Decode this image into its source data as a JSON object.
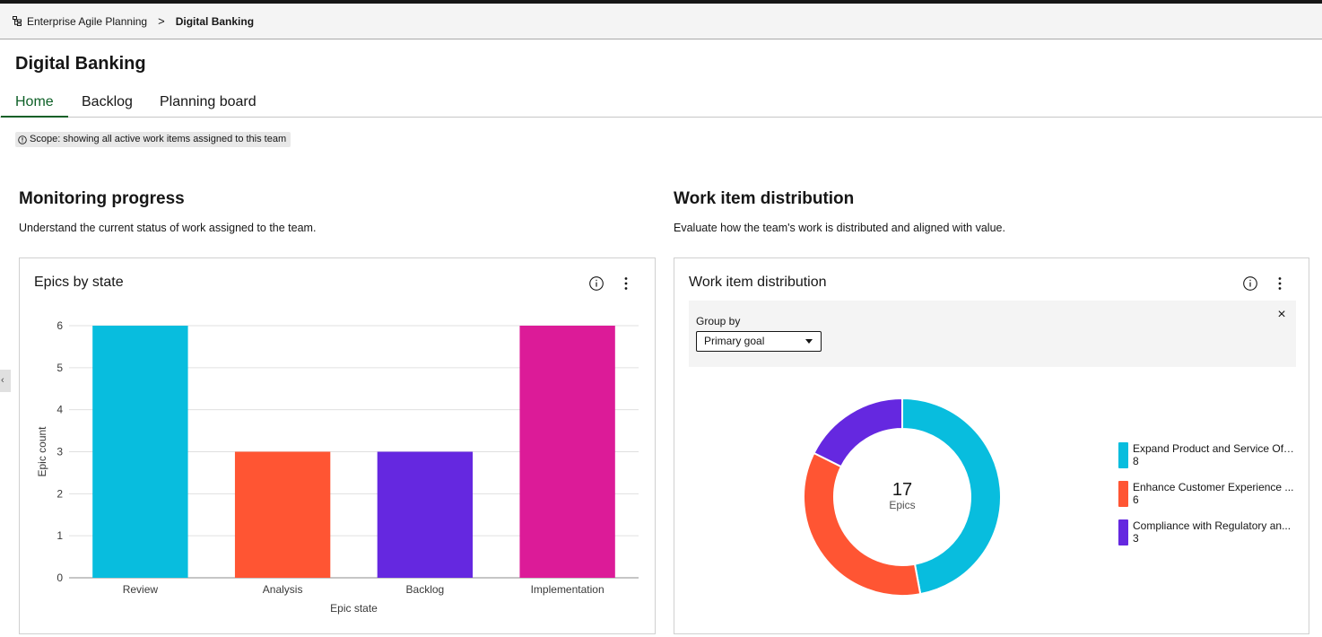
{
  "breadcrumb": {
    "parent": "Enterprise Agile Planning",
    "separator": ">",
    "current": "Digital Banking"
  },
  "page": {
    "title": "Digital Banking"
  },
  "tabs": [
    {
      "label": "Home",
      "active": true
    },
    {
      "label": "Backlog",
      "active": false
    },
    {
      "label": "Planning board",
      "active": false
    }
  ],
  "scope": {
    "text": "Scope: showing all active work items assigned to this team"
  },
  "side_handle": {
    "glyph": "‹"
  },
  "monitoring": {
    "title": "Monitoring progress",
    "description": "Understand the current status of work assigned to the team.",
    "card_title": "Epics by state"
  },
  "distribution": {
    "title": "Work item distribution",
    "description": "Evaluate how the team's work is distributed and aligned with value.",
    "card_title": "Work item distribution",
    "group_by_label": "Group by",
    "group_by_value": "Primary goal",
    "close_glyph": "×",
    "center_total": "17",
    "center_label": "Epics"
  },
  "colors": {
    "accent": "#0e6027",
    "cyan": "#08bdde",
    "orange": "#ff5533",
    "purple": "#6528e0",
    "magenta": "#dc1b98"
  },
  "chart_data": [
    {
      "type": "bar",
      "title": "Epics by state",
      "categories": [
        "Review",
        "Analysis",
        "Backlog",
        "Implementation"
      ],
      "values": [
        6,
        3,
        3,
        6
      ],
      "colors": [
        "#08bdde",
        "#ff5533",
        "#6528e0",
        "#dc1b98"
      ],
      "xlabel": "Epic state",
      "ylabel": "Epic count",
      "ylim": [
        0,
        6
      ],
      "yticks": [
        "0",
        "1",
        "2",
        "3",
        "4",
        "5",
        "6"
      ],
      "grid": true
    },
    {
      "type": "pie",
      "variant": "donut",
      "title": "Work item distribution",
      "labels": [
        "Expand Product and Service Off...",
        "Enhance Customer Experience ...",
        "Compliance with Regulatory an..."
      ],
      "values": [
        8,
        6,
        3
      ],
      "colors": [
        "#08bdde",
        "#ff5533",
        "#6528e0"
      ],
      "legend": "right"
    }
  ]
}
